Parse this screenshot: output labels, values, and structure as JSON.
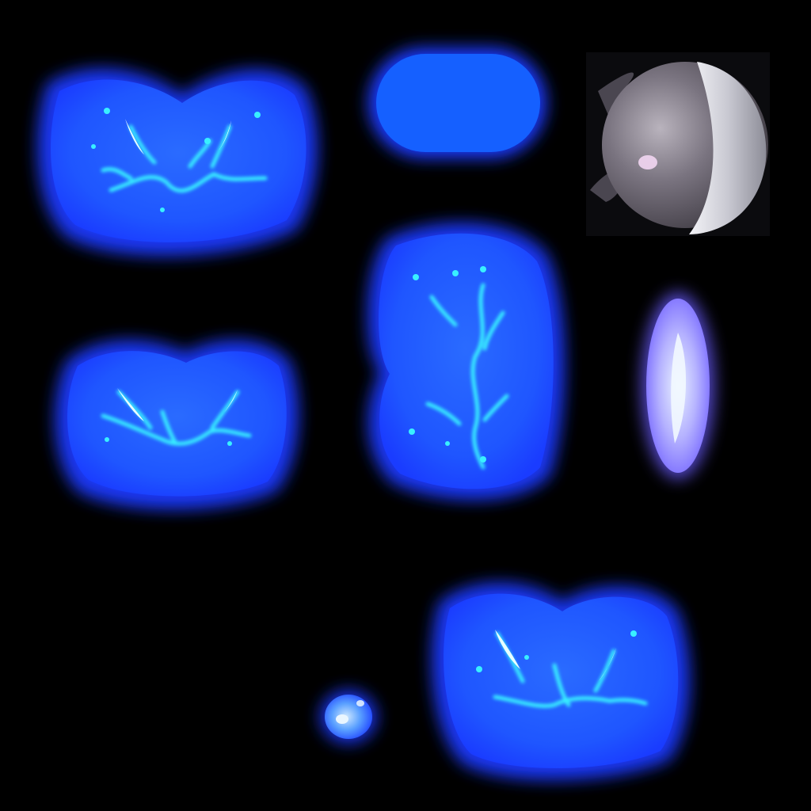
{
  "sprite_sheet": {
    "background_color": "#000000",
    "colors": {
      "outer_glow": "#1a3bff",
      "inner_fill": "#1f5bff",
      "splash_cyan": "#39f0ff",
      "splash_highlight": "#e8ffff",
      "pill_fill": "#1560ff",
      "crystal_lavender": "#c8c8ff",
      "ball_dark": "#6e6a70",
      "ball_light": "#e8e8ec"
    },
    "sprites": [
      {
        "name": "splash-large-top-left",
        "kind": "water-splash"
      },
      {
        "name": "blue-pill",
        "kind": "glow-pill"
      },
      {
        "name": "metal-ball-helmet",
        "kind": "metal-ball"
      },
      {
        "name": "splash-medium-left",
        "kind": "water-splash"
      },
      {
        "name": "splash-vertical-center",
        "kind": "water-splash"
      },
      {
        "name": "crystal-shard",
        "kind": "glow-shard"
      },
      {
        "name": "splash-large-bottom-right",
        "kind": "water-splash"
      },
      {
        "name": "small-droplet",
        "kind": "droplet"
      }
    ]
  }
}
